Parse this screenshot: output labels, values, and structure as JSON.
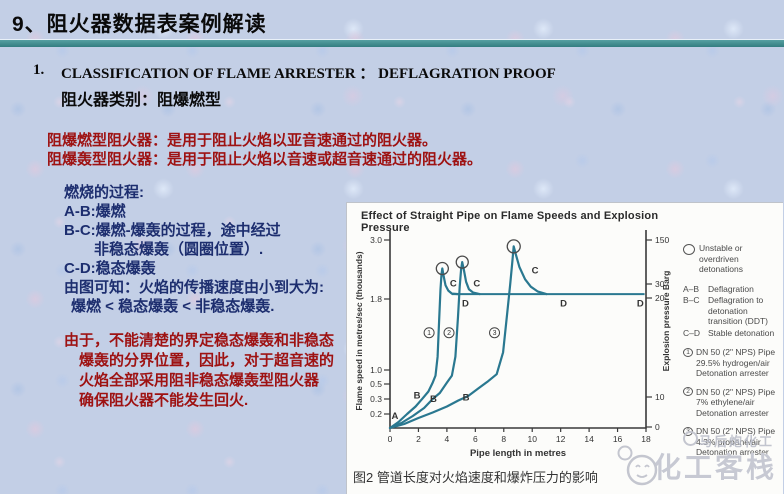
{
  "slide": {
    "title": "9、阻火器数据表案例解读",
    "heading_number": "1.",
    "heading_en": "CLASSIFICATION OF FLAME ARRESTER ：  DEFLAGRATION PROOF",
    "heading_cn": "阻火器类别：阻爆燃型",
    "definitions": [
      "阻爆燃型阻火器：是用于阻止火焰以亚音速通过的阻火器。",
      "阻爆轰型阻火器：是用于阻止火焰以音速或超音速通过的阻火器。"
    ],
    "process_block": [
      "燃烧的过程:",
      "A-B:爆燃",
      "B-C:爆燃-爆轰的过程，途中经过",
      "非稳态爆轰（圆圈位置）.",
      "C-D:稳态爆轰",
      "由图可知：火焰的传播速度由小到大为:",
      "爆燃 < 稳态爆轰 < 非稳态爆轰."
    ],
    "note_block": [
      "由于，不能清楚的界定稳态爆轰和非稳态",
      "爆轰的分界位置，因此，对于超音速的",
      "火焰全部采用阻非稳态爆轰型阻火器",
      "确保阻火器不能发生回火."
    ],
    "caption": "图2 管道长度对火焰速度和爆炸压力的影响",
    "watermark_small": "马后炮化工",
    "watermark_large": "化工客栈",
    "colors": {
      "accent_red": "#9e1212",
      "accent_blue": "#1d2e6f",
      "divider_teal": "#3a8f91",
      "curve_teal": "#2a7890"
    }
  },
  "chart_data": {
    "type": "line",
    "title": "Effect of Straight Pipe on Flame Speeds and Explosion Pressure",
    "xlabel": "Pipe length in metres",
    "ylabel_left": "Flame speed in metres/sec (thousands)",
    "ylabel_right": "Explosion pressure Barg",
    "x_ticks": [
      0,
      2,
      4,
      6,
      8,
      10,
      12,
      14,
      16,
      18
    ],
    "y_ticks_left": [
      3.0,
      1.8,
      1.0,
      0.5,
      0.3,
      0.2
    ],
    "y_ticks_right": [
      150,
      30,
      20,
      10,
      0
    ],
    "xlim": [
      0,
      18
    ],
    "grid": false,
    "legend_position": "right",
    "series": [
      {
        "name": "DN 50 (2\" NPS) Pipe 29.5% hydrogen/air Detonation arrester",
        "points": [
          [
            0,
            0.13
          ],
          [
            0.6,
            0.16
          ],
          [
            1.2,
            0.2
          ],
          [
            1.8,
            0.25
          ],
          [
            2.3,
            0.31
          ],
          [
            2.7,
            0.4
          ],
          [
            3.0,
            0.55
          ],
          [
            3.2,
            0.8
          ],
          [
            3.35,
            1.15
          ],
          [
            3.45,
            1.55
          ],
          [
            3.55,
            2.0
          ],
          [
            3.62,
            2.3
          ],
          [
            3.68,
            2.42
          ],
          [
            3.78,
            2.25
          ],
          [
            3.9,
            2.08
          ],
          [
            4.1,
            1.97
          ],
          [
            4.35,
            1.91
          ],
          [
            4.8,
            1.9
          ]
        ]
      },
      {
        "name": "DN 50 (2\" NPS) Pipe 7% ethylene/air Detonation arrester",
        "points": [
          [
            0,
            0.13
          ],
          [
            0.8,
            0.155
          ],
          [
            1.6,
            0.19
          ],
          [
            2.4,
            0.24
          ],
          [
            3.0,
            0.3
          ],
          [
            3.5,
            0.38
          ],
          [
            4.0,
            0.55
          ],
          [
            4.35,
            0.8
          ],
          [
            4.6,
            1.15
          ],
          [
            4.78,
            1.6
          ],
          [
            4.9,
            2.05
          ],
          [
            5.0,
            2.4
          ],
          [
            5.08,
            2.55
          ],
          [
            5.2,
            2.38
          ],
          [
            5.35,
            2.15
          ],
          [
            5.55,
            2.0
          ],
          [
            5.85,
            1.93
          ],
          [
            6.3,
            1.9
          ]
        ]
      },
      {
        "name": "DN 50 (2\" NPS) Pipe 4.3% propane/air Detonation arrester",
        "points": [
          [
            0,
            0.13
          ],
          [
            1.0,
            0.15
          ],
          [
            2.0,
            0.18
          ],
          [
            3.0,
            0.21
          ],
          [
            4.0,
            0.25
          ],
          [
            4.8,
            0.29
          ],
          [
            5.5,
            0.34
          ],
          [
            6.2,
            0.44
          ],
          [
            6.9,
            0.6
          ],
          [
            7.5,
            0.85
          ],
          [
            7.95,
            1.2
          ],
          [
            8.25,
            1.65
          ],
          [
            8.45,
            2.1
          ],
          [
            8.6,
            2.55
          ],
          [
            8.7,
            2.87
          ],
          [
            8.85,
            2.7
          ],
          [
            9.1,
            2.45
          ],
          [
            9.5,
            2.2
          ],
          [
            9.9,
            2.05
          ],
          [
            10.4,
            1.95
          ],
          [
            11.0,
            1.9
          ]
        ]
      }
    ],
    "plateau": {
      "y": 1.9,
      "x_start": 4.35,
      "x_end": 17.9
    },
    "unstable_markers": [
      {
        "x": 3.68,
        "y": 2.42,
        "r": 6
      },
      {
        "x": 5.08,
        "y": 2.55,
        "r": 6
      },
      {
        "x": 8.7,
        "y": 2.87,
        "r": 6.5
      }
    ],
    "annotations": [
      {
        "t": "A",
        "x": 0.35,
        "y": 0.19
      },
      {
        "t": "B",
        "x": 1.9,
        "y": 0.35
      },
      {
        "t": "B",
        "x": 3.05,
        "y": 0.3
      },
      {
        "t": "B",
        "x": 5.35,
        "y": 0.32
      },
      {
        "t": "C",
        "x": 4.45,
        "y": 2.12
      },
      {
        "t": "C",
        "x": 6.1,
        "y": 2.12
      },
      {
        "t": "C",
        "x": 10.2,
        "y": 2.38
      },
      {
        "t": "D",
        "x": 5.3,
        "y": 1.75
      },
      {
        "t": "D",
        "x": 12.2,
        "y": 1.75
      },
      {
        "t": "D",
        "x": 17.6,
        "y": 1.75
      },
      {
        "t": "1",
        "x": 2.75,
        "y": 1.42,
        "circled": true
      },
      {
        "t": "2",
        "x": 4.15,
        "y": 1.42,
        "circled": true
      },
      {
        "t": "3",
        "x": 7.35,
        "y": 1.42,
        "circled": true
      }
    ],
    "legend": {
      "unstable_label": "Unstable or overdriven detonations",
      "stages": [
        [
          "A–B",
          "Deflagration"
        ],
        [
          "B–C",
          "Deflagration to detonation transition (DDT)"
        ],
        [
          "C–D",
          "Stable detonation"
        ]
      ],
      "pipes": [
        [
          "1",
          "DN 50 (2\" NPS) Pipe",
          "29.5% hydrogen/air",
          "Detonation arrester"
        ],
        [
          "2",
          "DN 50 (2\" NPS) Pipe",
          "7% ethylene/air",
          "Detonation arrester"
        ],
        [
          "3",
          "DN 50 (2\" NPS) Pipe",
          "4.3% propane/air",
          "Detonation arrester"
        ]
      ]
    }
  }
}
